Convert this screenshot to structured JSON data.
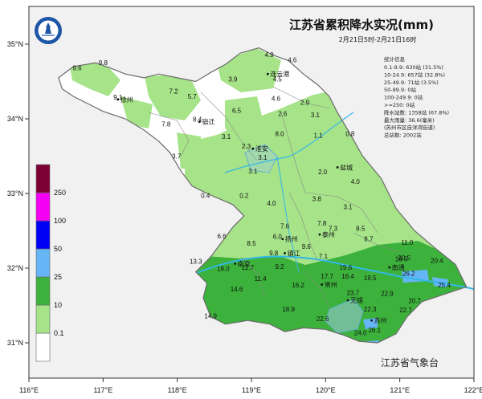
{
  "map": {
    "title": "江苏省累积降水实况(mm)",
    "time_range": "2月21日5时-2月21日16时",
    "agency": "江苏省气象台",
    "logo_text": "江苏省气象台",
    "colors": {
      "background": "#ffffff",
      "outside": "#f1f1f1",
      "land": "#ffffff",
      "lvl_0_1": "#a6e389",
      "lvl_10": "#3cb23c",
      "lvl_25": "#66b5f7",
      "lvl_50": "#0000f5",
      "lvl_100": "#f500f5",
      "lvl_250": "#7d0035",
      "water": "#34b7e6",
      "boundary": "#7a7a7a"
    }
  },
  "legend": {
    "levels": [
      "0.1",
      "10",
      "25",
      "50",
      "100",
      "250"
    ],
    "colors": [
      "#ffffff",
      "#a6e389",
      "#3cb23c",
      "#66b5f7",
      "#0000f5",
      "#f500f5",
      "#7d0035"
    ]
  },
  "axes": {
    "lon": [
      "116°E",
      "117°E",
      "118°E",
      "119°E",
      "120°E",
      "121°E",
      "122°E"
    ],
    "lat": [
      "35°N",
      "34°N",
      "33°N",
      "32°N",
      "31°N"
    ]
  },
  "stats": {
    "title": "统计信息",
    "lines": [
      "0.1-9.9: 630站 (31.5%)",
      "10-24.9: 657站 (32.8%)",
      "25-49.9: 71站 (3.5%)",
      "50-99.9: 0站",
      "100-249.9: 0站",
      ">=250: 0站",
      "降水站数: 1358站 (67.8%)",
      "最大雨量: 36.6(毫米)",
      "(苏州市区自洋湾街道)",
      "总站数: 2002站"
    ]
  },
  "cities": [
    {
      "name": "连云港",
      "lon": 119.22,
      "lat": 34.6
    },
    {
      "name": "徐州",
      "lon": 117.2,
      "lat": 34.26
    },
    {
      "name": "宿迁",
      "lon": 118.3,
      "lat": 33.96
    },
    {
      "name": "淮安",
      "lon": 119.02,
      "lat": 33.6
    },
    {
      "name": "盐城",
      "lon": 120.16,
      "lat": 33.35
    },
    {
      "name": "扬州",
      "lon": 119.42,
      "lat": 32.39
    },
    {
      "name": "泰州",
      "lon": 119.92,
      "lat": 32.45
    },
    {
      "name": "南京",
      "lon": 118.78,
      "lat": 32.06
    },
    {
      "name": "镇江",
      "lon": 119.45,
      "lat": 32.2
    },
    {
      "name": "常州",
      "lon": 119.95,
      "lat": 31.78
    },
    {
      "name": "南通",
      "lon": 120.86,
      "lat": 32.01
    },
    {
      "name": "无锡",
      "lon": 120.3,
      "lat": 31.57
    },
    {
      "name": "苏州",
      "lon": 120.62,
      "lat": 31.3
    }
  ],
  "observations": [
    {
      "value": "9.8",
      "lon": 117.0,
      "lat": 34.72
    },
    {
      "value": "9.6",
      "lon": 116.65,
      "lat": 34.65
    },
    {
      "value": "9.1",
      "lon": 117.2,
      "lat": 34.26
    },
    {
      "value": "7.2",
      "lon": 117.95,
      "lat": 34.34
    },
    {
      "value": "5.7",
      "lon": 118.2,
      "lat": 34.27
    },
    {
      "value": "8.4",
      "lon": 118.27,
      "lat": 33.96
    },
    {
      "value": "7.8",
      "lon": 117.85,
      "lat": 33.9
    },
    {
      "value": "3.9",
      "lon": 118.75,
      "lat": 34.5
    },
    {
      "value": "4.9",
      "lon": 119.24,
      "lat": 34.83
    },
    {
      "value": "4.6",
      "lon": 119.55,
      "lat": 34.76
    },
    {
      "value": "4.5",
      "lon": 119.35,
      "lat": 34.5
    },
    {
      "value": "4.6",
      "lon": 119.33,
      "lat": 34.24
    },
    {
      "value": "2.9",
      "lon": 119.72,
      "lat": 34.19
    },
    {
      "value": "6.5",
      "lon": 118.8,
      "lat": 34.08
    },
    {
      "value": "2.6",
      "lon": 119.42,
      "lat": 34.04
    },
    {
      "value": "3.1",
      "lon": 119.86,
      "lat": 34.02
    },
    {
      "value": "8.0",
      "lon": 119.38,
      "lat": 33.77
    },
    {
      "value": "3.1",
      "lon": 118.66,
      "lat": 33.73
    },
    {
      "value": "2.3",
      "lon": 118.93,
      "lat": 33.6
    },
    {
      "value": "3.7",
      "lon": 117.99,
      "lat": 33.47
    },
    {
      "value": "3.1",
      "lon": 119.15,
      "lat": 33.45
    },
    {
      "value": "3.1",
      "lon": 119.02,
      "lat": 33.27
    },
    {
      "value": "1.1",
      "lon": 119.9,
      "lat": 33.75
    },
    {
      "value": "0.8",
      "lon": 120.33,
      "lat": 33.77
    },
    {
      "value": "2.0",
      "lon": 119.96,
      "lat": 33.26
    },
    {
      "value": "4.0",
      "lon": 120.4,
      "lat": 33.13
    },
    {
      "value": "0.4",
      "lon": 118.38,
      "lat": 32.94
    },
    {
      "value": "0.2",
      "lon": 118.9,
      "lat": 32.94
    },
    {
      "value": "4.0",
      "lon": 119.27,
      "lat": 32.84
    },
    {
      "value": "3.8",
      "lon": 119.88,
      "lat": 32.9
    },
    {
      "value": "3.1",
      "lon": 120.3,
      "lat": 32.79
    },
    {
      "value": "7.6",
      "lon": 119.45,
      "lat": 32.53
    },
    {
      "value": "7.8",
      "lon": 119.95,
      "lat": 32.57
    },
    {
      "value": "7.3",
      "lon": 120.1,
      "lat": 32.5
    },
    {
      "value": "8.5",
      "lon": 120.47,
      "lat": 32.5
    },
    {
      "value": "8.7",
      "lon": 120.58,
      "lat": 32.36
    },
    {
      "value": "6.6",
      "lon": 118.6,
      "lat": 32.4
    },
    {
      "value": "8.5",
      "lon": 119.0,
      "lat": 32.3
    },
    {
      "value": "6.0",
      "lon": 119.35,
      "lat": 32.39
    },
    {
      "value": "9.6",
      "lon": 119.74,
      "lat": 32.26
    },
    {
      "value": "11.0",
      "lon": 121.1,
      "lat": 32.31
    },
    {
      "value": "9.8",
      "lon": 119.3,
      "lat": 32.17
    },
    {
      "value": "7.1",
      "lon": 119.97,
      "lat": 32.13
    },
    {
      "value": "13.3",
      "lon": 118.25,
      "lat": 32.06
    },
    {
      "value": "18.0",
      "lon": 118.62,
      "lat": 31.96
    },
    {
      "value": "12.7",
      "lon": 118.95,
      "lat": 31.98
    },
    {
      "value": "9.2",
      "lon": 119.38,
      "lat": 31.99
    },
    {
      "value": "19.6",
      "lon": 120.27,
      "lat": 31.98
    },
    {
      "value": "16.4",
      "lon": 120.3,
      "lat": 31.86
    },
    {
      "value": "19.5",
      "lon": 120.6,
      "lat": 31.84
    },
    {
      "value": "19.5",
      "lon": 121.02,
      "lat": 32.09
    },
    {
      "value": "20.5",
      "lon": 121.06,
      "lat": 32.11
    },
    {
      "value": "20.4",
      "lon": 121.5,
      "lat": 32.07
    },
    {
      "value": "26.2",
      "lon": 121.12,
      "lat": 31.9
    },
    {
      "value": "25.4",
      "lon": 121.6,
      "lat": 31.74
    },
    {
      "value": "11.4",
      "lon": 119.12,
      "lat": 31.83
    },
    {
      "value": "17.7",
      "lon": 120.02,
      "lat": 31.86
    },
    {
      "value": "16.2",
      "lon": 119.63,
      "lat": 31.74
    },
    {
      "value": "14.6",
      "lon": 118.8,
      "lat": 31.69
    },
    {
      "value": "23.7",
      "lon": 120.37,
      "lat": 31.64
    },
    {
      "value": "22.9",
      "lon": 120.83,
      "lat": 31.63
    },
    {
      "value": "20.7",
      "lon": 121.2,
      "lat": 31.53
    },
    {
      "value": "18.9",
      "lon": 119.5,
      "lat": 31.42
    },
    {
      "value": "22.3",
      "lon": 120.6,
      "lat": 31.42
    },
    {
      "value": "22.7",
      "lon": 121.08,
      "lat": 31.41
    },
    {
      "value": "14.9",
      "lon": 118.45,
      "lat": 31.33
    },
    {
      "value": "22.6",
      "lon": 119.96,
      "lat": 31.29
    },
    {
      "value": "26.1",
      "lon": 120.66,
      "lat": 31.14
    },
    {
      "value": "24.0",
      "lon": 120.47,
      "lat": 31.1
    }
  ]
}
